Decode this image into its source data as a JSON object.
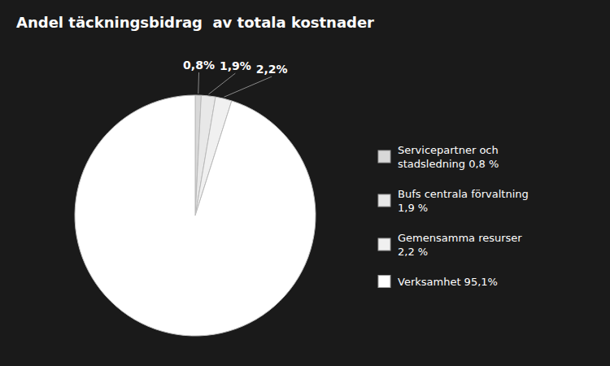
{
  "chart_data": {
    "type": "pie",
    "title": "Andel täckningsbidrag  av totala kostnader",
    "categories": [
      "Servicepartner och\nstadsledning 0,8 %",
      "Bufs centrala förvaltning\n1,9 %",
      "Gemensamma resurser\n2,2 %",
      "Verksamhet 95,1%"
    ],
    "values": [
      0.8,
      1.9,
      2.2,
      95.1
    ],
    "value_labels": [
      "0,8%",
      "1,9%",
      "2,2%",
      null
    ],
    "colors": [
      "#d8d8d8",
      "#e8e8e8",
      "#f0f0f0",
      "#ffffff"
    ],
    "data_labels": true,
    "legend": "right"
  }
}
